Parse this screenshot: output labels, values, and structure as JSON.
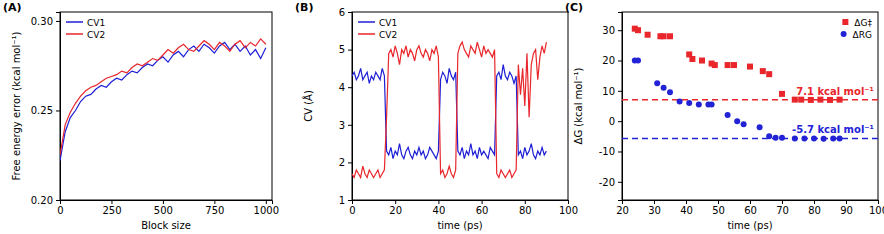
{
  "chart_data": [
    {
      "type": "line",
      "title": "(A)",
      "x_label": "Block size",
      "y_label": "Free energy error (kcal mol⁻¹)",
      "x": [
        0,
        25,
        50,
        75,
        100,
        125,
        150,
        175,
        200,
        225,
        250,
        275,
        300,
        325,
        350,
        375,
        400,
        425,
        450,
        475,
        500,
        525,
        550,
        575,
        600,
        625,
        650,
        675,
        700,
        725,
        750,
        775,
        800,
        825,
        850,
        875,
        900,
        925,
        950,
        975,
        1000
      ],
      "series": [
        {
          "name": "CV1",
          "color": "#1f1fd6",
          "values": [
            0.222,
            0.238,
            0.246,
            0.25,
            0.255,
            0.258,
            0.259,
            0.262,
            0.264,
            0.263,
            0.266,
            0.268,
            0.267,
            0.27,
            0.272,
            0.271,
            0.274,
            0.276,
            0.275,
            0.278,
            0.28,
            0.277,
            0.281,
            0.283,
            0.28,
            0.284,
            0.286,
            0.283,
            0.287,
            0.285,
            0.282,
            0.286,
            0.288,
            0.284,
            0.287,
            0.283,
            0.286,
            0.281,
            0.284,
            0.279,
            0.285
          ]
        },
        {
          "name": "CV2",
          "color": "#e8262b",
          "values": [
            0.225,
            0.242,
            0.249,
            0.254,
            0.258,
            0.261,
            0.263,
            0.264,
            0.266,
            0.268,
            0.269,
            0.27,
            0.272,
            0.271,
            0.274,
            0.276,
            0.275,
            0.277,
            0.279,
            0.278,
            0.281,
            0.284,
            0.282,
            0.285,
            0.287,
            0.284,
            0.283,
            0.286,
            0.289,
            0.287,
            0.284,
            0.288,
            0.286,
            0.283,
            0.287,
            0.289,
            0.285,
            0.288,
            0.286,
            0.29,
            0.287
          ]
        }
      ],
      "xlim": [
        0,
        1030
      ],
      "xticks": [
        0,
        250,
        500,
        750,
        1000
      ],
      "ylim": [
        0.2,
        0.305
      ],
      "yticks": [
        {
          "value": 0.2,
          "label": "0.20"
        },
        {
          "value": 0.25,
          "label": "0.25"
        },
        {
          "value": 0.3,
          "label": "0.30"
        }
      ],
      "legend": "upper left"
    },
    {
      "type": "line",
      "title": "(B)",
      "x_label": "time (ps)",
      "y_label": "CV (Å)",
      "x": [
        0,
        1,
        2,
        3,
        4,
        5,
        6,
        7,
        8,
        9,
        10,
        11,
        12,
        13,
        14,
        15,
        16,
        17,
        18,
        19,
        20,
        21,
        22,
        23,
        24,
        25,
        26,
        27,
        28,
        29,
        30,
        31,
        32,
        33,
        34,
        35,
        36,
        37,
        38,
        39,
        40,
        41,
        42,
        43,
        44,
        45,
        46,
        47,
        48,
        49,
        50,
        51,
        52,
        53,
        54,
        55,
        56,
        57,
        58,
        59,
        60,
        61,
        62,
        63,
        64,
        65,
        66,
        67,
        68,
        69,
        70,
        71,
        72,
        73,
        74,
        75,
        76,
        77,
        78,
        79,
        80,
        81,
        82,
        83,
        84,
        85,
        86,
        87,
        88,
        89,
        90
      ],
      "series": [
        {
          "name": "CV1",
          "color": "#1f1fd6",
          "values": [
            4.3,
            4.4,
            4.2,
            4.3,
            4.5,
            4.2,
            4.3,
            4.4,
            4.1,
            4.3,
            4.2,
            4.4,
            4.3,
            4.2,
            4.5,
            4.3,
            2.3,
            2.2,
            2.4,
            2.1,
            2.3,
            2.2,
            2.5,
            2.2,
            2.1,
            2.3,
            2.4,
            2.2,
            2.1,
            2.3,
            2.2,
            2.4,
            2.2,
            2.3,
            2.1,
            2.2,
            2.4,
            2.3,
            2.2,
            2.1,
            2.3,
            4.2,
            4.4,
            4.3,
            4.1,
            4.5,
            4.3,
            4.2,
            4.4,
            2.3,
            2.2,
            2.4,
            2.1,
            2.3,
            2.2,
            2.5,
            2.2,
            2.3,
            2.1,
            2.4,
            2.2,
            2.3,
            2.2,
            2.1,
            2.4,
            2.3,
            2.2,
            4.3,
            4.4,
            4.2,
            4.6,
            4.3,
            4.2,
            4.4,
            4.3,
            4.1,
            4.3,
            2.2,
            2.3,
            2.1,
            2.4,
            2.2,
            2.3,
            2.5,
            2.2,
            2.1,
            2.3,
            2.2,
            2.4,
            2.2,
            2.3
          ]
        },
        {
          "name": "CV2",
          "color": "#e8262b",
          "values": [
            1.7,
            1.6,
            1.8,
            1.7,
            1.6,
            1.9,
            1.7,
            1.6,
            1.8,
            1.7,
            1.6,
            1.7,
            1.8,
            1.6,
            1.7,
            1.8,
            3.2,
            4.9,
            5.0,
            4.8,
            5.1,
            4.9,
            4.6,
            5.0,
            4.9,
            5.1,
            4.8,
            5.0,
            4.9,
            4.7,
            5.0,
            5.1,
            4.9,
            4.8,
            5.0,
            4.9,
            4.7,
            5.0,
            4.9,
            5.1,
            4.8,
            1.7,
            1.8,
            1.6,
            1.7,
            1.9,
            1.7,
            1.6,
            1.8,
            4.9,
            5.1,
            5.2,
            5.0,
            4.9,
            4.8,
            5.1,
            5.0,
            4.9,
            5.2,
            5.0,
            4.8,
            5.1,
            4.9,
            5.0,
            4.9,
            4.8,
            5.0,
            1.7,
            1.6,
            1.8,
            1.7,
            1.6,
            1.7,
            1.8,
            1.6,
            1.7,
            1.8,
            4.6,
            3.8,
            4.5,
            3.5,
            4.9,
            3.2,
            4.6,
            4.9,
            5.0,
            4.2,
            4.8,
            5.1,
            4.9,
            5.2
          ]
        }
      ],
      "xlim": [
        0,
        100
      ],
      "xticks": [
        0,
        20,
        40,
        60,
        80,
        100
      ],
      "ylim": [
        1,
        6
      ],
      "yticks": [
        1,
        2,
        3,
        4,
        5,
        6
      ],
      "legend": "upper left"
    },
    {
      "type": "scatter",
      "title": "(C)",
      "x_label": "time (ps)",
      "y_label": "ΔG (kcal mol⁻¹)",
      "series": [
        {
          "name": "ΔG‡",
          "color": "#e8262b",
          "marker": "square",
          "x": [
            24,
            25,
            28,
            32,
            33,
            35,
            41,
            42,
            45,
            48,
            49,
            53,
            55,
            60,
            64,
            66,
            70,
            74,
            76,
            79,
            82,
            85,
            88
          ],
          "values": [
            30.5,
            30,
            28.5,
            28,
            28,
            28,
            22,
            20.5,
            20,
            19,
            18.5,
            18.5,
            18.5,
            18,
            16.5,
            15.5,
            9,
            7.1,
            7.1,
            7,
            7.1,
            7,
            7.1
          ]
        },
        {
          "name": "ΔRG",
          "color": "#2323d6",
          "marker": "circle",
          "x": [
            24,
            25,
            31,
            33,
            35,
            38,
            41,
            44,
            47,
            48,
            53,
            56,
            58,
            63,
            66,
            68,
            70,
            74,
            77,
            80,
            83,
            86,
            88
          ],
          "values": [
            20,
            20,
            12.5,
            11,
            9.5,
            6.5,
            6,
            5.5,
            5.5,
            5.5,
            2,
            0,
            -1,
            -2,
            -5,
            -5.5,
            -5.5,
            -5.7,
            -5.7,
            -5.7,
            -5.8,
            -5.7,
            -5.7
          ]
        }
      ],
      "reference_lines": [
        {
          "value": 7.1,
          "label": "7.1 kcal mol⁻¹",
          "color": "#e8262b",
          "line_style": "dashed"
        },
        {
          "value": -5.7,
          "label": "-5.7 kcal mol⁻¹",
          "color": "#2323d6",
          "line_style": "dashed"
        }
      ],
      "xlim": [
        20,
        100
      ],
      "xticks": [
        20,
        30,
        40,
        50,
        60,
        70,
        80,
        90,
        100
      ],
      "ylim": [
        -26,
        36
      ],
      "yticks": [
        -20,
        -10,
        0,
        10,
        20,
        30
      ],
      "legend": "upper right"
    }
  ]
}
